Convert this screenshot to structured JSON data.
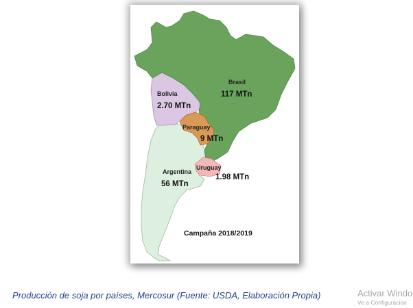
{
  "campaign": "Campaña 2018/2019",
  "caption": "Producción de soja por países, Mercosur (Fuente: USDA, Elaboración Propia)",
  "colors": {
    "brasil": "#6aa35c",
    "argentina": "#ddefdf",
    "bolivia": "#dcc7e3",
    "paraguay": "#d99a55",
    "uruguay": "#f3b9b9"
  },
  "regions": [
    {
      "country": "Brasil",
      "value": "117 MTn"
    },
    {
      "country": "Argentina",
      "value": "56 MTn"
    },
    {
      "country": "Bolivia",
      "value": "2.70 MTn"
    },
    {
      "country": "Paraguay",
      "value": "9 MTn"
    },
    {
      "country": "Uruguay",
      "value": "1.98 MTn"
    }
  ],
  "watermark": {
    "title": "Activar Windo",
    "subtitle": "Ve a Configuración"
  }
}
